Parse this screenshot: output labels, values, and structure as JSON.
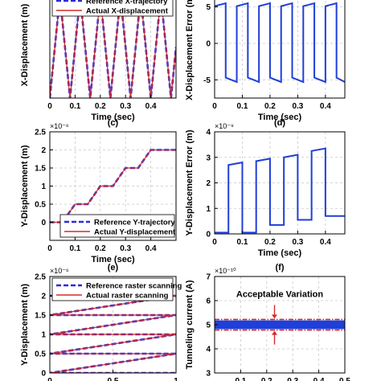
{
  "colors": {
    "reference": "#2b2bd8",
    "actual": "#d42a2a",
    "error": "#1f3fd8",
    "current": "#1f3fd8",
    "limit": "#d42a2a",
    "grid": "#c8c8c8"
  },
  "chart_data": [
    {
      "id": "a",
      "type": "line",
      "panel_label": "",
      "xlabel": "Time (sec)",
      "ylabel": "X-Displacement (m)",
      "xlim": [
        0,
        0.5
      ],
      "ylim": [
        0,
        5.2
      ],
      "xticks": [
        "0",
        "0.1",
        "0.2",
        "0.3",
        "0.4"
      ],
      "xtick_values": [
        0,
        0.1,
        0.2,
        0.3,
        0.4
      ],
      "yticks": [],
      "ytick_values": [],
      "exponent": "",
      "grid": true,
      "legend_position": "top-center",
      "series": [
        {
          "name": "Reference X-trajectory",
          "role": "reference",
          "style": "dashed",
          "x": [
            0,
            0.04,
            0.08,
            0.12,
            0.16,
            0.2,
            0.24,
            0.28,
            0.32,
            0.36,
            0.4,
            0.44,
            0.48,
            0.5
          ],
          "y": [
            0,
            5,
            0,
            5,
            0,
            5,
            0,
            5,
            0,
            5,
            0,
            5,
            0,
            2.5
          ]
        },
        {
          "name": "Actual X-displacement",
          "role": "actual",
          "style": "solid",
          "x": [
            0,
            0.04,
            0.08,
            0.12,
            0.16,
            0.2,
            0.24,
            0.28,
            0.32,
            0.36,
            0.4,
            0.44,
            0.48,
            0.5
          ],
          "y": [
            0,
            5,
            0,
            5,
            0,
            5,
            0,
            5,
            0,
            5,
            0,
            5,
            0,
            2.5
          ]
        }
      ]
    },
    {
      "id": "b",
      "type": "line",
      "panel_label": "",
      "xlabel": "Time (sec)",
      "ylabel": "X-Displacement Error (m)",
      "xlim": [
        0,
        0.47
      ],
      "ylim": [
        -7.5,
        6.5
      ],
      "xticks": [
        "0",
        "0.1",
        "0.2",
        "0.3",
        "0.4"
      ],
      "xtick_values": [
        0,
        0.1,
        0.2,
        0.3,
        0.4
      ],
      "yticks": [
        "-5",
        "0",
        "5"
      ],
      "ytick_values": [
        -5,
        0,
        5
      ],
      "exponent": "",
      "grid": true,
      "legend_position": "none",
      "series": [
        {
          "name": "",
          "role": "error",
          "style": "solid",
          "x": [
            0.0,
            0.04,
            0.04,
            0.08,
            0.08,
            0.12,
            0.12,
            0.16,
            0.16,
            0.2,
            0.2,
            0.24,
            0.24,
            0.28,
            0.28,
            0.32,
            0.32,
            0.36,
            0.36,
            0.4,
            0.4,
            0.44,
            0.44,
            0.47
          ],
          "y": [
            5.1,
            5.5,
            -4.7,
            -5.3,
            5.1,
            5.5,
            -4.7,
            -5.3,
            5.1,
            5.5,
            -4.7,
            -5.3,
            5.1,
            5.5,
            -4.7,
            -5.3,
            5.1,
            5.5,
            -4.7,
            -5.3,
            5.1,
            5.5,
            -4.7,
            -5.3
          ]
        }
      ]
    },
    {
      "id": "c",
      "type": "line",
      "panel_label": "(c)",
      "xlabel": "Time (sec)",
      "ylabel": "Y-Displacement (m)",
      "xlim": [
        0,
        0.5
      ],
      "ylim": [
        -0.5,
        2.5
      ],
      "xticks": [
        "0",
        "0.1",
        "0.2",
        "0.3",
        "0.4"
      ],
      "xtick_values": [
        0,
        0.1,
        0.2,
        0.3,
        0.4
      ],
      "yticks": [
        "0",
        "0.5",
        "1",
        "1.5",
        "2",
        "2.5"
      ],
      "ytick_values": [
        0,
        0.5,
        1,
        1.5,
        2,
        2.5
      ],
      "exponent": "×10⁻⁶",
      "grid": true,
      "legend_position": "bottom-right",
      "series": [
        {
          "name": "Reference Y-trajectory",
          "role": "reference",
          "style": "dashed",
          "x": [
            0,
            0.05,
            0.1,
            0.15,
            0.2,
            0.25,
            0.3,
            0.35,
            0.4,
            0.5
          ],
          "y": [
            0,
            0,
            0.5,
            0.5,
            1,
            1,
            1.5,
            1.5,
            2,
            2
          ]
        },
        {
          "name": "Actual Y-displacement",
          "role": "actual",
          "style": "solid",
          "x": [
            0,
            0.05,
            0.1,
            0.15,
            0.2,
            0.25,
            0.3,
            0.35,
            0.4,
            0.5
          ],
          "y": [
            0,
            0,
            0.5,
            0.5,
            1,
            1,
            1.5,
            1.5,
            2,
            2
          ]
        }
      ]
    },
    {
      "id": "d",
      "type": "line",
      "panel_label": "(d)",
      "xlabel": "Time (sec)",
      "ylabel": "Y-Displacement Error (m)",
      "xlim": [
        0,
        0.47
      ],
      "ylim": [
        0,
        4
      ],
      "xticks": [
        "0",
        "0.1",
        "0.2",
        "0.3",
        "0.4"
      ],
      "xtick_values": [
        0,
        0.1,
        0.2,
        0.3,
        0.4
      ],
      "yticks": [
        "0",
        "1",
        "2",
        "3",
        "4"
      ],
      "ytick_values": [
        0,
        1,
        2,
        3,
        4
      ],
      "exponent": "×10⁻⁹",
      "grid": true,
      "legend_position": "none",
      "series": [
        {
          "name": "",
          "role": "error",
          "style": "solid",
          "x": [
            0.0,
            0.05,
            0.05,
            0.1,
            0.1,
            0.15,
            0.15,
            0.2,
            0.2,
            0.25,
            0.25,
            0.3,
            0.3,
            0.35,
            0.35,
            0.4,
            0.4,
            0.47
          ],
          "y": [
            0.05,
            0.05,
            2.7,
            2.8,
            0.05,
            0.05,
            2.85,
            2.95,
            0.35,
            0.35,
            3.0,
            3.1,
            0.55,
            0.55,
            3.25,
            3.35,
            0.7,
            0.7
          ]
        }
      ]
    },
    {
      "id": "e",
      "type": "line",
      "panel_label": "(e)",
      "xlabel": "",
      "ylabel": "Y-Displacement (m)",
      "xlim": [
        0,
        1
      ],
      "ylim": [
        0,
        2.5
      ],
      "xticks": [
        "0",
        "0.5",
        "1"
      ],
      "xtick_values": [
        0,
        0.5,
        1
      ],
      "yticks": [
        "0",
        "0.5",
        "1",
        "1.5",
        "2",
        "2.5"
      ],
      "ytick_values": [
        0,
        0.5,
        1,
        1.5,
        2,
        2.5
      ],
      "exponent": "×10⁻⁶",
      "grid": true,
      "legend_position": "top-center",
      "series": [
        {
          "name": "Reference raster scanning",
          "role": "reference",
          "style": "dashed",
          "x": [
            0,
            1,
            0,
            1,
            0,
            1,
            0,
            1,
            0,
            1
          ],
          "y": [
            2,
            2,
            1.5,
            1.5,
            1,
            1,
            0.5,
            0.5,
            0,
            0
          ]
        },
        {
          "name": "Actual raster scanning",
          "role": "actual",
          "style": "solid",
          "x": [
            0,
            1,
            0,
            1,
            0,
            1,
            0,
            1,
            0,
            1
          ],
          "y": [
            2,
            2,
            1.5,
            1.5,
            1,
            1,
            0.5,
            0.5,
            0,
            0
          ]
        }
      ]
    },
    {
      "id": "f",
      "type": "line",
      "panel_label": "(f)",
      "xlabel": "",
      "ylabel": "Tunneling current (A)",
      "xlim": [
        0,
        0.5
      ],
      "ylim": [
        3,
        7
      ],
      "xticks": [
        "0.1",
        "0.2",
        "0.3",
        "0.4",
        "0.5"
      ],
      "xtick_values": [
        0.1,
        0.2,
        0.3,
        0.4,
        0.5
      ],
      "yticks": [
        "3",
        "4",
        "5",
        "6",
        "7"
      ],
      "ytick_values": [
        3,
        4,
        5,
        6,
        7
      ],
      "exponent": "×10⁻¹⁰",
      "grid": true,
      "legend_position": "none",
      "annotation": "Acceptable Variation",
      "band": {
        "center": 5.0,
        "halfwidth": 0.18
      },
      "limits": [
        5.22,
        4.78
      ],
      "series": [
        {
          "name": "",
          "role": "current",
          "style": "solid",
          "x": [
            0,
            0.5
          ],
          "y": [
            5.0,
            5.0
          ]
        }
      ]
    }
  ]
}
